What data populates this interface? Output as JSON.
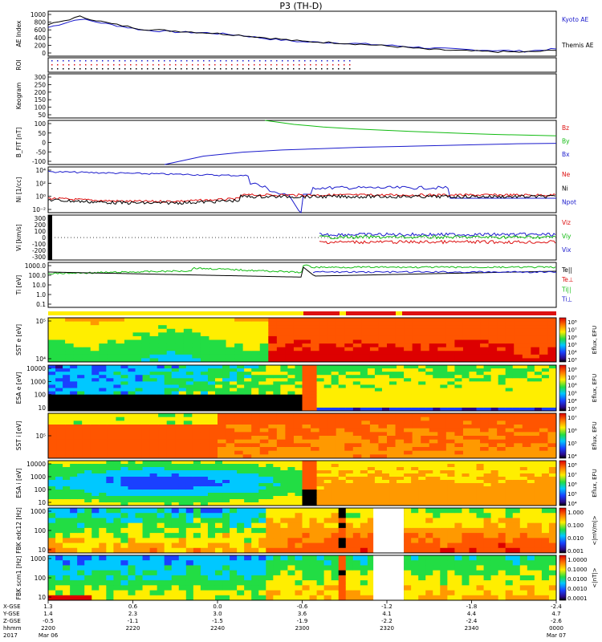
{
  "title": "P3 (TH-D)",
  "colors": {
    "blue": "#1a1acc",
    "black": "#000000",
    "red": "#dd1111",
    "green": "#11bb11",
    "yellow": "#ffee00"
  },
  "chart_data": [
    {
      "id": "ae",
      "type": "line",
      "ylabel": "AE Index",
      "ticks": [
        "1000",
        "800",
        "600",
        "400",
        "200",
        "0"
      ],
      "ylim": [
        0,
        1000
      ],
      "x": [
        2200,
        2210,
        2220,
        2230,
        2240,
        2250,
        2260,
        2270,
        2280,
        2290,
        2300,
        2310,
        2320,
        2330,
        2340,
        2350,
        2360
      ],
      "series": [
        {
          "name": "Kyoto AE",
          "color": "#1a1acc",
          "values": [
            640,
            830,
            700,
            580,
            540,
            520,
            470,
            380,
            320,
            300,
            270,
            230,
            180,
            150,
            130,
            110,
            160
          ]
        },
        {
          "name": "Themis AE",
          "color": "#000000",
          "values": [
            700,
            880,
            720,
            600,
            560,
            520,
            470,
            400,
            330,
            300,
            260,
            210,
            150,
            120,
            100,
            90,
            130
          ]
        }
      ]
    },
    {
      "id": "roi",
      "type": "other",
      "ylabel": "ROI"
    },
    {
      "id": "keogram",
      "type": "other",
      "ylabel": "Keogram",
      "ticks": [
        "300",
        "250",
        "200",
        "150",
        "100",
        "50"
      ]
    },
    {
      "id": "bfield",
      "type": "line",
      "ylabel": "B_FIT [nT]",
      "ticks": [
        "100",
        "50",
        "0",
        "-50",
        "-100"
      ],
      "ylim": [
        -100,
        100
      ],
      "series": [
        {
          "name": "Bz",
          "color": "#dd1111",
          "values": []
        },
        {
          "name": "By",
          "color": "#11bb11",
          "values": [
            100,
            82,
            70,
            62,
            56,
            50,
            45,
            40,
            36,
            33,
            30
          ]
        },
        {
          "name": "Bx",
          "color": "#1a1acc",
          "values": [
            -100,
            -62,
            -44,
            -34,
            -28,
            -22,
            -18,
            -14,
            -10,
            -6,
            -4
          ]
        }
      ]
    },
    {
      "id": "density",
      "type": "line",
      "ylabel": "Ni [1/cc]",
      "ticks": [
        "10⁴",
        "10²",
        "10⁰",
        "10⁻²"
      ],
      "series": [
        {
          "name": "Ne",
          "color": "#dd1111",
          "values": []
        },
        {
          "name": "Ni",
          "color": "#000000",
          "values": []
        },
        {
          "name": "Npot",
          "color": "#1a1acc",
          "values": []
        }
      ]
    },
    {
      "id": "velocity",
      "type": "line",
      "ylabel": "Vi [km/s]",
      "ticks": [
        "300",
        "200",
        "100",
        "0",
        "-100",
        "-200",
        "-300"
      ],
      "ylim": [
        -300,
        300
      ],
      "series": [
        {
          "name": "Viz",
          "color": "#dd1111",
          "values": []
        },
        {
          "name": "Viy",
          "color": "#11bb11",
          "values": []
        },
        {
          "name": "Vix",
          "color": "#1a1acc",
          "values": []
        }
      ]
    },
    {
      "id": "temperature",
      "type": "line",
      "ylabel": "Ti [eV]",
      "ticks": [
        "1000.0",
        "100.0",
        "10.0",
        "1.0",
        "0.1"
      ],
      "series": [
        {
          "name": "Te||",
          "color": "#000000",
          "values": []
        },
        {
          "name": "Te⊥",
          "color": "#dd1111",
          "values": []
        },
        {
          "name": "Ti||",
          "color": "#11bb11",
          "values": []
        },
        {
          "name": "Ti⊥",
          "color": "#1a1acc",
          "values": []
        }
      ]
    },
    {
      "id": "sst_e",
      "type": "heatmap",
      "ylabel": "SST e [eV]",
      "ticks": [
        "10⁵",
        "10⁴"
      ],
      "colorbar_ticks": [
        "10⁸",
        "10⁷",
        "10⁶",
        "10⁵",
        "10⁴",
        "10³"
      ],
      "colorbar_label": "Eflux, EFU"
    },
    {
      "id": "esa_e",
      "type": "heatmap",
      "ylabel": "ESA e [eV]",
      "ticks": [
        "10000",
        "1000",
        "100",
        "10"
      ],
      "colorbar_ticks": [
        "10⁸",
        "10⁷",
        "10⁶",
        "10⁵",
        "10⁴",
        "10³"
      ],
      "colorbar_label": "Eflux, EFU"
    },
    {
      "id": "sst_i",
      "type": "heatmap",
      "ylabel": "SST i [eV]",
      "ticks": [
        "10⁵"
      ],
      "colorbar_ticks": [
        "10⁷",
        "10⁶",
        "10⁵",
        "10⁴"
      ],
      "colorbar_label": "Eflux, EFU"
    },
    {
      "id": "esa_i",
      "type": "heatmap",
      "ylabel": "ESA i [eV]",
      "ticks": [
        "10000",
        "1000",
        "100",
        "10"
      ],
      "colorbar_ticks": [
        "10⁸",
        "10⁷",
        "10⁶",
        "10⁵",
        "10⁴"
      ],
      "colorbar_label": "Eflux, EFU"
    },
    {
      "id": "fbk_e",
      "type": "heatmap",
      "ylabel": "FBK edc12 [Hz]",
      "ticks": [
        "1000",
        "100",
        "10"
      ],
      "colorbar_ticks": [
        "1.000",
        "0.100",
        "0.010",
        "0.001"
      ],
      "colorbar_label": "<|mV/m|>"
    },
    {
      "id": "fbk_b",
      "type": "heatmap",
      "ylabel": "FBK scm1 [Hz]",
      "ticks": [
        "1000",
        "100",
        "10"
      ],
      "colorbar_ticks": [
        "1.0000",
        "0.1000",
        "0.0100",
        "0.0010",
        "0.0001"
      ],
      "colorbar_label": "<|nT|>"
    }
  ],
  "xaxis": {
    "row_labels": [
      "X-GSE",
      "Y-GSE",
      "Z-GSE",
      "hhmm",
      "2017"
    ],
    "columns": [
      {
        "vals": [
          "1.3",
          "1.4",
          "-0.5",
          "2200",
          "Mar 06"
        ]
      },
      {
        "vals": [
          "0.6",
          "2.3",
          "-1.1",
          "2220",
          ""
        ]
      },
      {
        "vals": [
          "0.0",
          "3.0",
          "-1.5",
          "2240",
          ""
        ]
      },
      {
        "vals": [
          "-0.6",
          "3.6",
          "-1.9",
          "2300",
          ""
        ]
      },
      {
        "vals": [
          "-1.2",
          "4.1",
          "-2.2",
          "2320",
          ""
        ]
      },
      {
        "vals": [
          "-1.8",
          "4.4",
          "-2.4",
          "2340",
          ""
        ]
      },
      {
        "vals": [
          "-2.4",
          "4.7",
          "-2.6",
          "0000",
          "Mar 07"
        ]
      }
    ]
  }
}
